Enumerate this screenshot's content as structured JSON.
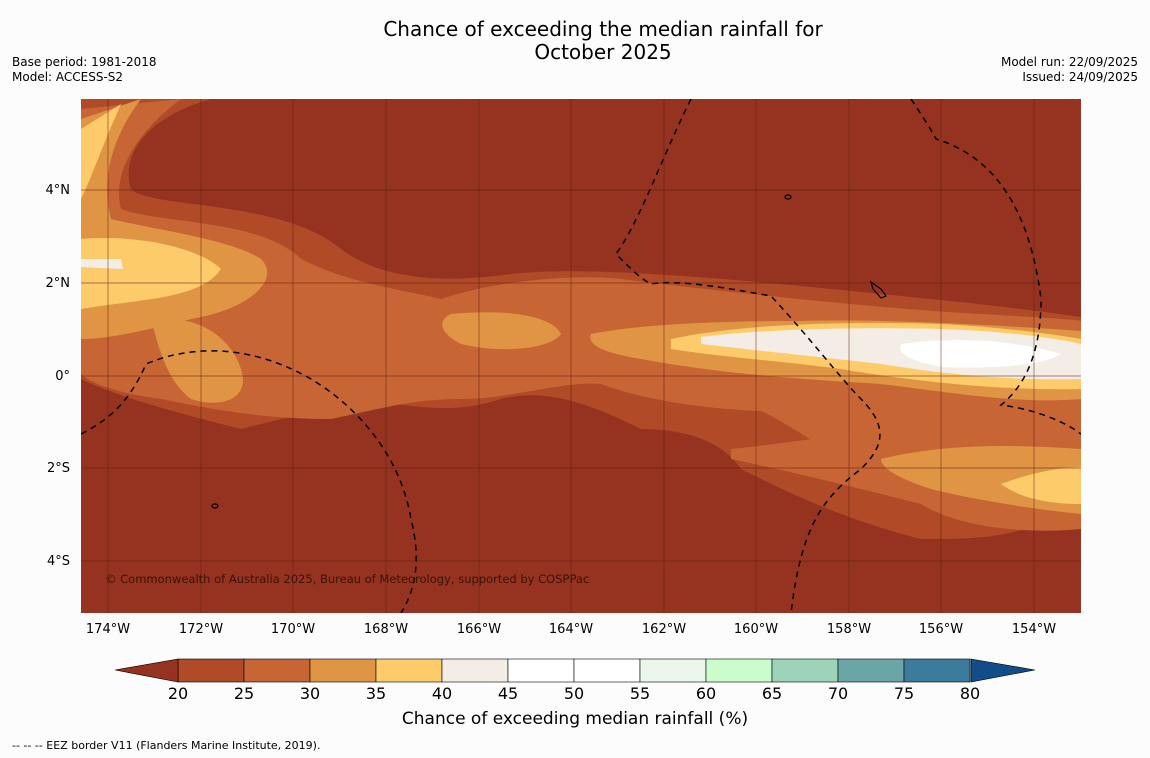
{
  "title": {
    "line1": "Chance of exceeding the median rainfall for",
    "line2": "October 2025"
  },
  "meta": {
    "base_period": "Base period: 1981-2018",
    "model": "Model: ACCESS-S2",
    "model_run": "Model run: 22/09/2025",
    "issued": "Issued: 24/09/2025"
  },
  "map": {
    "copyright": "© Commonwealth of Australia 2025, Bureau of Meteorology, supported by COSPPac",
    "lat_labels": [
      "4°N",
      "2°N",
      "0°",
      "2°S",
      "4°S"
    ],
    "lon_labels": [
      "174°W",
      "172°W",
      "170°W",
      "168°W",
      "166°W",
      "164°W",
      "162°W",
      "160°W",
      "158°W",
      "156°W",
      "154°W"
    ],
    "colors": {
      "below20": "#963320",
      "r20_25": "#b04a27",
      "r25_30": "#c86535",
      "r30_35": "#e09545",
      "r35_40": "#fdcb6a",
      "r40_45": "#f3ede6",
      "r45_55": "#ffffff"
    }
  },
  "colorbar": {
    "title": "Chance of exceeding median rainfall (%)",
    "ticks": [
      "20",
      "25",
      "30",
      "35",
      "40",
      "45",
      "50",
      "55",
      "60",
      "65",
      "70",
      "75",
      "80"
    ],
    "colors": [
      "#b04a27",
      "#c86535",
      "#e09545",
      "#fdcb6a",
      "#f3ede6",
      "#ffffff",
      "#ffffff",
      "#eaf7ea",
      "#cbfccb",
      "#9dd3b9",
      "#6aa6a6",
      "#3b7c9d"
    ],
    "low_color": "#963320",
    "high_color": "#124d8a"
  },
  "footer": "-- -- -- EEZ border V11 (Flanders Marine Institute, 2019)."
}
